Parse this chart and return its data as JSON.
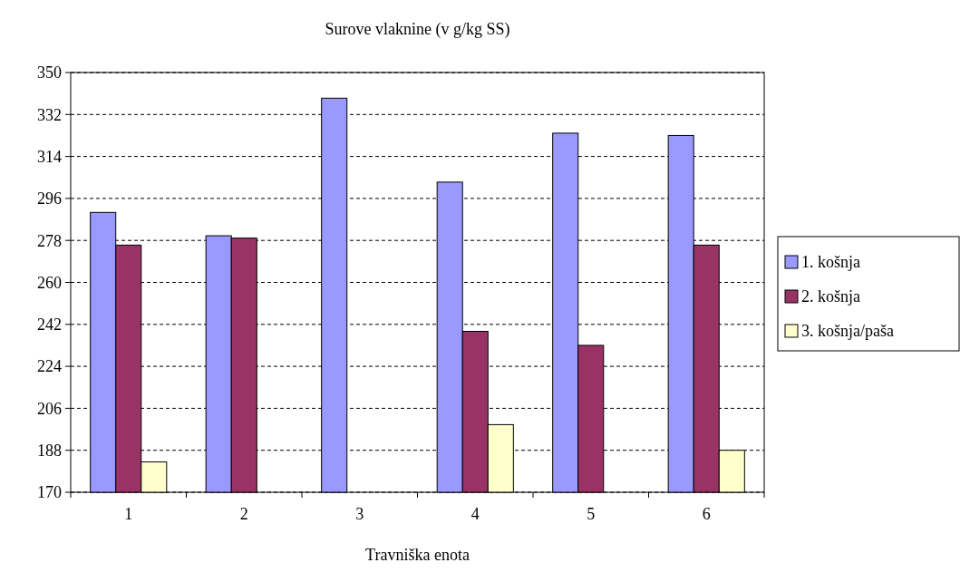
{
  "chart_data": {
    "type": "bar",
    "title": "Surove vlaknine (v g/kg SS)",
    "xlabel": "Travniška enota",
    "categories": [
      "1",
      "2",
      "3",
      "4",
      "5",
      "6"
    ],
    "series": [
      {
        "name": "1. košnja",
        "color": "#9999ff",
        "values": [
          290,
          280,
          339,
          303,
          324,
          323
        ]
      },
      {
        "name": "2. košnja",
        "color": "#993366",
        "values": [
          276,
          279,
          null,
          239,
          233,
          276
        ]
      },
      {
        "name": "3. košnja/paša",
        "color": "#ffffcc",
        "values": [
          183,
          null,
          null,
          199,
          null,
          188
        ]
      }
    ],
    "ylim": [
      170,
      350
    ],
    "yticks": [
      170,
      188,
      206,
      224,
      242,
      260,
      278,
      296,
      314,
      332,
      350
    ],
    "grid": "y",
    "line_style": "dashed",
    "legend": "right"
  }
}
